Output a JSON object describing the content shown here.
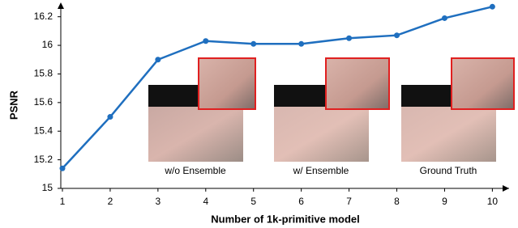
{
  "chart_data": {
    "type": "line",
    "y_label": "PSNR",
    "x_label": "Number of 1k-primitive model",
    "x": [
      1,
      2,
      3,
      4,
      5,
      6,
      7,
      8,
      9,
      10
    ],
    "series": [
      {
        "name": "PSNR",
        "color": "#1f6fbf",
        "values": [
          15.14,
          15.5,
          15.9,
          16.03,
          16.01,
          16.01,
          16.05,
          16.07,
          16.19,
          16.27
        ]
      }
    ],
    "xlim": [
      1,
      10.35
    ],
    "xticks": [
      1,
      2,
      3,
      4,
      5,
      6,
      7,
      8,
      9,
      10
    ],
    "ylim": [
      15,
      16.3
    ],
    "yticks": [
      15,
      15.2,
      15.4,
      15.6,
      15.8,
      16,
      16.2
    ],
    "grid": false,
    "annotations": [
      "w/o Ensemble",
      "w/ Ensemble",
      "Ground Truth"
    ]
  }
}
